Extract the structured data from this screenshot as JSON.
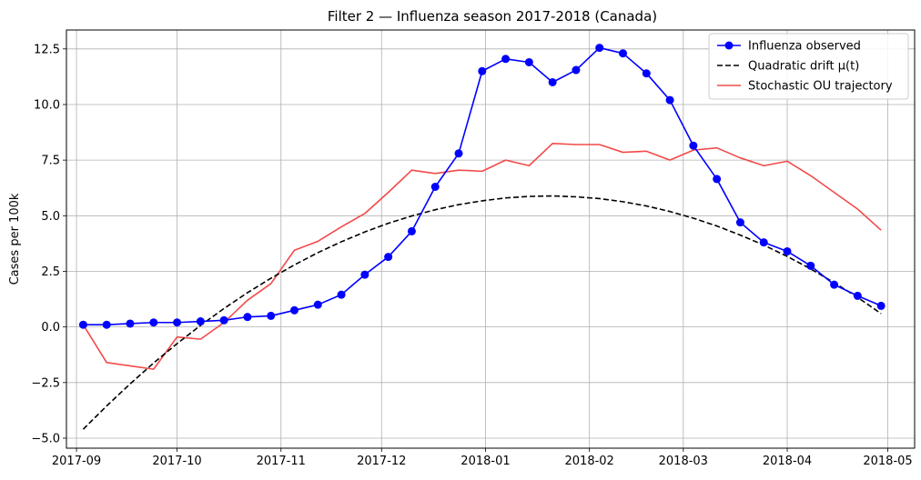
{
  "chart_data": {
    "type": "line",
    "title": "Filter 2 — Influenza season 2017-2018 (Canada)",
    "xlabel": "",
    "ylabel": "Cases per 100k",
    "xlim": [
      "2017-08-29",
      "2018-05-09"
    ],
    "ylim": [
      -5.45,
      13.35
    ],
    "grid": true,
    "legend_position": "top-right",
    "x_ticks": [
      "2017-09",
      "2017-10",
      "2017-11",
      "2017-12",
      "2018-01",
      "2018-02",
      "2018-03",
      "2018-04",
      "2018-05"
    ],
    "x_tick_dates": [
      "2017-09-01",
      "2017-10-01",
      "2017-11-01",
      "2017-12-01",
      "2018-01-01",
      "2018-02-01",
      "2018-03-01",
      "2018-04-01",
      "2018-05-01"
    ],
    "y_ticks": [
      -5.0,
      -2.5,
      0.0,
      2.5,
      5.0,
      7.5,
      10.0,
      12.5
    ],
    "y_tick_labels": [
      "−5.0",
      "−2.5",
      "0.0",
      "2.5",
      "5.0",
      "7.5",
      "10.0",
      "12.5"
    ],
    "x": [
      "2017-09-03",
      "2017-09-10",
      "2017-09-17",
      "2017-09-24",
      "2017-10-01",
      "2017-10-08",
      "2017-10-15",
      "2017-10-22",
      "2017-10-29",
      "2017-11-05",
      "2017-11-12",
      "2017-11-19",
      "2017-11-26",
      "2017-12-03",
      "2017-12-10",
      "2017-12-17",
      "2017-12-24",
      "2017-12-31",
      "2018-01-07",
      "2018-01-14",
      "2018-01-21",
      "2018-01-28",
      "2018-02-04",
      "2018-02-11",
      "2018-02-18",
      "2018-02-25",
      "2018-03-04",
      "2018-03-11",
      "2018-03-18",
      "2018-03-25",
      "2018-04-01",
      "2018-04-08",
      "2018-04-15",
      "2018-04-22",
      "2018-04-29"
    ],
    "series": [
      {
        "name": "Influenza observed",
        "color": "#0000ff",
        "style": "line-marker",
        "values": [
          0.1,
          0.1,
          0.15,
          0.2,
          0.2,
          0.25,
          0.3,
          0.45,
          0.5,
          0.75,
          1.0,
          1.45,
          2.35,
          3.15,
          4.3,
          6.3,
          7.8,
          11.5,
          12.05,
          11.9,
          11.0,
          11.55,
          12.55,
          12.3,
          11.4,
          10.2,
          8.15,
          6.65,
          4.7,
          3.8,
          3.4,
          2.75,
          1.9,
          1.4,
          0.95
        ]
      },
      {
        "name": "Quadratic drift μ(t)",
        "color": "#000000",
        "style": "dashed",
        "values": [
          -4.6,
          -3.55,
          -2.56,
          -1.62,
          -0.75,
          0.07,
          0.83,
          1.54,
          2.19,
          2.79,
          3.34,
          3.83,
          4.27,
          4.66,
          4.99,
          5.27,
          5.5,
          5.67,
          5.8,
          5.87,
          5.89,
          5.85,
          5.77,
          5.63,
          5.44,
          5.19,
          4.89,
          4.54,
          4.13,
          3.68,
          3.17,
          2.61,
          1.99,
          1.33,
          0.6
        ]
      },
      {
        "name": "Stochastic OU trajectory",
        "color": "#f24a4a",
        "style": "line",
        "values": [
          0.1,
          -1.6,
          -1.75,
          -1.9,
          -0.45,
          -0.55,
          0.2,
          1.2,
          1.95,
          3.45,
          3.85,
          4.5,
          5.1,
          6.05,
          7.05,
          6.9,
          7.05,
          7.0,
          7.5,
          7.25,
          8.25,
          8.2,
          8.2,
          7.85,
          7.9,
          7.5,
          7.95,
          8.05,
          7.6,
          7.25,
          7.45,
          6.8,
          6.05,
          5.3,
          4.35
        ]
      }
    ]
  }
}
